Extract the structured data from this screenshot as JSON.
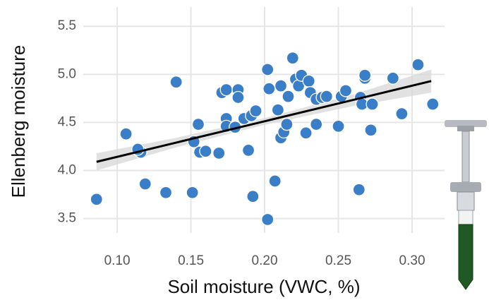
{
  "chart_data": {
    "type": "scatter",
    "x_label": "Soil moisture (VWC, %)",
    "y_label": "Ellenberg moisture",
    "color": "#3b7ec8",
    "fit_color": "#000000",
    "band_color": "#d9d9d9",
    "grid": true,
    "xlim": [
      0.077,
      0.322
    ],
    "ylim": [
      3.35,
      5.7
    ],
    "xticks": [
      {
        "value": 0.1,
        "label": "0.10"
      },
      {
        "value": 0.15,
        "label": "0.15"
      },
      {
        "value": 0.2,
        "label": "0.20"
      },
      {
        "value": 0.25,
        "label": "0.25"
      },
      {
        "value": 0.3,
        "label": "0.30"
      }
    ],
    "yticks": [
      3.5,
      {
        "value": 4,
        "label": "4.0"
      },
      4.5,
      {
        "value": 5,
        "label": "5.0"
      },
      5.5
    ],
    "x": [
      0.086,
      0.106,
      0.116,
      0.114,
      0.119,
      0.133,
      0.14,
      0.151,
      0.152,
      0.155,
      0.156,
      0.16,
      0.169,
      0.171,
      0.174,
      0.174,
      0.174,
      0.182,
      0.182,
      0.18,
      0.186,
      0.189,
      0.191,
      0.192,
      0.194,
      0.202,
      0.203,
      0.202,
      0.207,
      0.209,
      0.211,
      0.211,
      0.213,
      0.215,
      0.216,
      0.219,
      0.221,
      0.223,
      0.225,
      0.228,
      0.23,
      0.231,
      0.235,
      0.235,
      0.239,
      0.242,
      0.25,
      0.252,
      0.255,
      0.264,
      0.265,
      0.266,
      0.268,
      0.268,
      0.272,
      0.273,
      0.287,
      0.293,
      0.304,
      0.314
    ],
    "values": [
      3.7,
      4.38,
      4.19,
      4.22,
      3.86,
      3.77,
      4.92,
      3.77,
      4.3,
      4.48,
      4.19,
      4.2,
      4.18,
      4.81,
      4.84,
      4.54,
      4.46,
      4.84,
      4.76,
      4.45,
      4.54,
      4.21,
      4.57,
      3.73,
      4.62,
      5.05,
      4.85,
      3.49,
      3.89,
      4.63,
      4.88,
      4.34,
      4.4,
      4.48,
      4.77,
      5.17,
      4.95,
      4.88,
      4.99,
      4.39,
      4.93,
      4.81,
      4.48,
      4.74,
      4.76,
      4.77,
      4.46,
      4.77,
      4.83,
      3.8,
      4.76,
      4.69,
      4.96,
      4.99,
      4.42,
      4.69,
      4.96,
      4.59,
      5.1,
      4.69
    ],
    "fit": {
      "x": [
        0.086,
        0.313
      ],
      "y": [
        4.09,
        4.93
      ]
    },
    "band": {
      "x": [
        0.086,
        0.14,
        0.2,
        0.26,
        0.313
      ],
      "lower": [
        4.0,
        4.24,
        4.475,
        4.67,
        4.81
      ],
      "upper": [
        4.18,
        4.34,
        4.545,
        4.79,
        5.05
      ]
    }
  }
}
